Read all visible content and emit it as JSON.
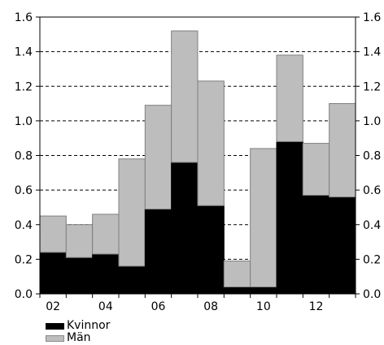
{
  "chart_data": {
    "type": "bar",
    "stacked": true,
    "categories": [
      "02",
      "03",
      "04",
      "05",
      "06",
      "07",
      "08",
      "09",
      "10",
      "11",
      "12",
      "13"
    ],
    "x_tick_labels": [
      "02",
      "04",
      "06",
      "08",
      "10",
      "12"
    ],
    "series": [
      {
        "name": "Kvinnor",
        "color": "#000000",
        "values": [
          0.24,
          0.21,
          0.23,
          0.16,
          0.49,
          0.76,
          0.51,
          0.04,
          0.04,
          0.88,
          0.57,
          0.56
        ]
      },
      {
        "name": "Män",
        "color": "#bdbdbd",
        "values": [
          0.21,
          0.19,
          0.23,
          0.62,
          0.6,
          0.76,
          0.72,
          0.15,
          0.8,
          0.5,
          0.3,
          0.54
        ]
      }
    ],
    "title": "",
    "xlabel": "",
    "ylabel": "",
    "ylim": [
      0,
      1.6
    ],
    "y_ticks": [
      "0.0",
      "0.2",
      "0.4",
      "0.6",
      "0.8",
      "1.0",
      "1.2",
      "1.4",
      "1.6"
    ],
    "grid": "horizontal-dashed",
    "secondary_y_axis": true,
    "legend_position": "bottom-left"
  }
}
